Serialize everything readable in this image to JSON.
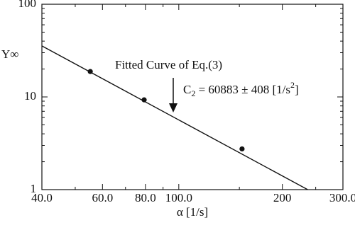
{
  "chart_data": {
    "type": "scatter",
    "x_label": "α [1/s]",
    "y_label": "Y∞",
    "x": [
      55.3,
      79.3,
      152.7
    ],
    "values": [
      18.8,
      9.3,
      2.75
    ],
    "color": "#111111",
    "fit": {
      "x": [
        40,
        237
      ],
      "values": [
        35.5,
        1
      ]
    },
    "annotation": "Fitted Curve of Eq.(3)",
    "equation": [
      "C",
      "2",
      " = 60883 ± 408 [1/s",
      "2",
      "]"
    ],
    "xlog": true,
    "ylog": true,
    "xlim": [
      40,
      300
    ],
    "ylim": [
      1,
      100
    ],
    "xticks": [
      {
        "value": 40,
        "label": "40.0"
      },
      {
        "value": 60,
        "label": "60.0"
      },
      {
        "value": 80,
        "label": "80.0"
      },
      {
        "value": 100,
        "label": "100.0"
      },
      {
        "value": 200,
        "label": "200"
      },
      {
        "value": 300,
        "label": "300.0"
      }
    ],
    "x_minor_ticks": [
      50,
      70,
      90,
      150,
      250
    ],
    "yticks": [
      1,
      10,
      100
    ],
    "y_minor_ticks": [
      2,
      3,
      4,
      5,
      6,
      7,
      8,
      9,
      20,
      30,
      40,
      50,
      60,
      70,
      80,
      90
    ]
  }
}
